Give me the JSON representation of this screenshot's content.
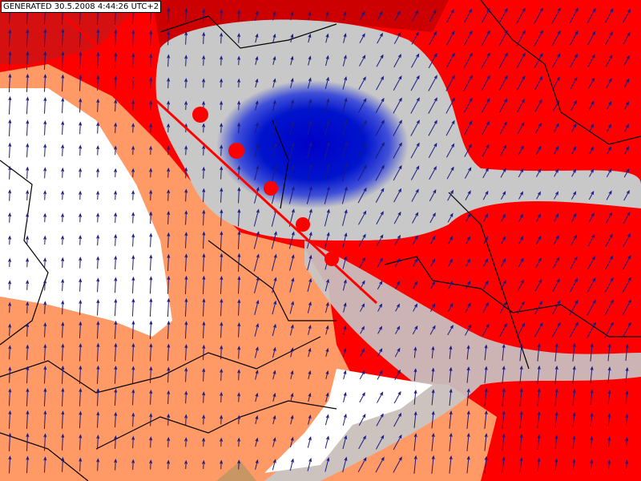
{
  "header": {
    "label": "GENERATED 30.5.2008 4:44:26 UTC+2"
  }
}
